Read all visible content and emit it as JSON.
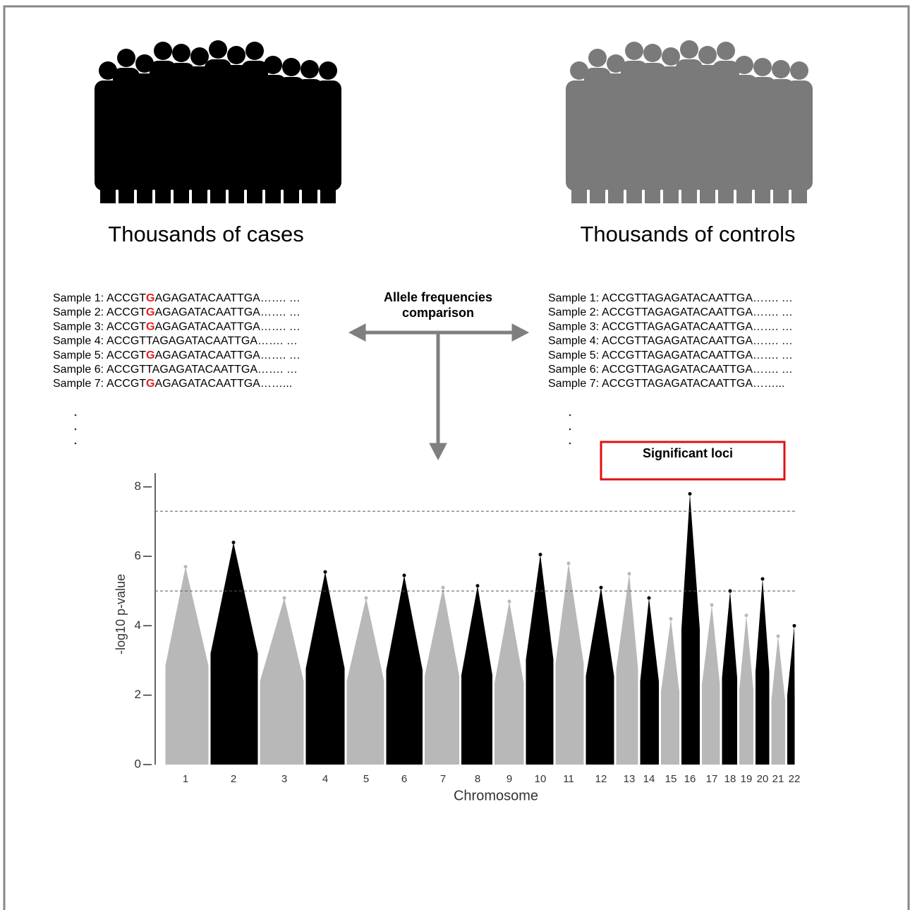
{
  "left_group": {
    "title": "Thousands of cases",
    "samples": [
      {
        "label": "Sample 1:",
        "prefix": "ACCGT",
        "allele": "G",
        "allele_color": "#e02020",
        "suffix": "AGAGATACAATTGA……. …"
      },
      {
        "label": "Sample 2:",
        "prefix": "ACCGT",
        "allele": "G",
        "allele_color": "#e02020",
        "suffix": "AGAGATACAATTGA……. …"
      },
      {
        "label": "Sample 3:",
        "prefix": "ACCGT",
        "allele": "G",
        "allele_color": "#e02020",
        "suffix": "AGAGATACAATTGA……. …"
      },
      {
        "label": "Sample 4:",
        "prefix": "ACCGT",
        "allele": "T",
        "allele_color": "#000000",
        "suffix": "AGAGATACAATTGA……. …"
      },
      {
        "label": "Sample 5:",
        "prefix": "ACCGT",
        "allele": "G",
        "allele_color": "#e02020",
        "suffix": "AGAGATACAATTGA……. …"
      },
      {
        "label": "Sample 6:",
        "prefix": "ACCGT",
        "allele": "T",
        "allele_color": "#000000",
        "suffix": "AGAGATACAATTGA……. …"
      },
      {
        "label": "Sample 7:",
        "prefix": "ACCGT",
        "allele": "G",
        "allele_color": "#e02020",
        "suffix": "AGAGATACAATTGA……..."
      }
    ]
  },
  "right_group": {
    "title": "Thousands of controls",
    "samples": [
      {
        "label": "Sample 1:",
        "prefix": "ACCGT",
        "allele": "T",
        "allele_color": "#000000",
        "suffix": "AGAGATACAATTGA……. …"
      },
      {
        "label": "Sample 2:",
        "prefix": "ACCGT",
        "allele": "T",
        "allele_color": "#000000",
        "suffix": "AGAGATACAATTGA……. …"
      },
      {
        "label": "Sample 3:",
        "prefix": "ACCGT",
        "allele": "T",
        "allele_color": "#000000",
        "suffix": "AGAGATACAATTGA……. …"
      },
      {
        "label": "Sample 4:",
        "prefix": "ACCGT",
        "allele": "T",
        "allele_color": "#000000",
        "suffix": "AGAGATACAATTGA……. …"
      },
      {
        "label": "Sample 5:",
        "prefix": "ACCGT",
        "allele": "T",
        "allele_color": "#000000",
        "suffix": "AGAGATACAATTGA……. …"
      },
      {
        "label": "Sample 6:",
        "prefix": "ACCGT",
        "allele": "T",
        "allele_color": "#000000",
        "suffix": "AGAGATACAATTGA……. …"
      },
      {
        "label": "Sample 7:",
        "prefix": "ACCGT",
        "allele": "T",
        "allele_color": "#000000",
        "suffix": "AGAGATACAATTGA……..."
      }
    ]
  },
  "comparison": "Allele frequencies comparison",
  "highlight": "Significant loci",
  "chart_data": {
    "type": "manhattan",
    "y_label": "-log10 p-value",
    "x_label": "Chromosome",
    "categories": [
      "1",
      "2",
      "3",
      "4",
      "5",
      "6",
      "7",
      "8",
      "9",
      "10",
      "11",
      "12",
      "13",
      "14",
      "15",
      "16",
      "17",
      "18",
      "19",
      "20",
      "21",
      "22"
    ],
    "values": [
      5.7,
      6.4,
      4.8,
      5.55,
      4.8,
      5.45,
      5.1,
      5.15,
      4.7,
      6.05,
      5.8,
      5.1,
      5.5,
      4.8,
      4.2,
      7.8,
      4.6,
      5.0,
      4.3,
      5.35,
      3.7,
      4.0
    ],
    "colors": [
      "#b8b8b8",
      "#000000"
    ],
    "thresholds": [
      7.3,
      5
    ],
    "ylim": [
      0,
      8.4
    ],
    "yticks": [
      0,
      2,
      4,
      6,
      8
    ]
  }
}
